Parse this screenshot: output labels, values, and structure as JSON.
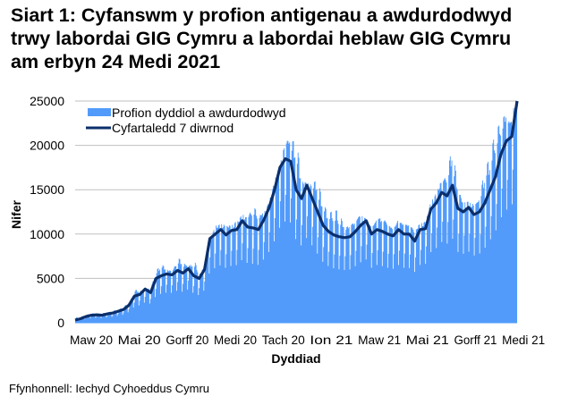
{
  "title": {
    "line1": "Siart 1: Cyfanswm y profion antigenau a awdurdodwyd",
    "line2": "trwy labordai GIG Cymru a labordai heblaw GIG Cymru",
    "line3": "am erbyn 24 Medi 2021"
  },
  "source": "Ffynhonnell: Iechyd Cyhoeddus Cymru",
  "colors": {
    "bars": "#529BFB",
    "line": "#0B2F6B",
    "grid": "#BFBFBF"
  },
  "chart_data": {
    "type": "bar",
    "title": "Siart 1: Cyfanswm y profion antigenau a awdurdodwyd trwy labordai GIG Cymru a labordai heblaw GIG Cymru am erbyn 24 Medi 2021",
    "xlabel": "Dyddiad",
    "ylabel": "Nifer",
    "ylim": [
      0,
      25000
    ],
    "yticks": [
      0,
      5000,
      10000,
      15000,
      20000,
      25000
    ],
    "xticks": [
      "Maw 20",
      "Mai 20",
      "Gorff 20",
      "Medi 20",
      "Tach 20",
      "Ion 21",
      "Maw 21",
      "Mai 21",
      "Gorff 21",
      "Medi 21"
    ],
    "grid": true,
    "legend_position": "top-left inside",
    "legend": [
      "Profion dyddiol a awdurdodwyd",
      "Cyfartaledd 7 diwrnod"
    ],
    "x_start": "2020-03-01",
    "x_end": "2021-09-24",
    "weekly_labels": [
      "2020-03-01",
      "2020-03-08",
      "2020-03-15",
      "2020-03-22",
      "2020-03-29",
      "2020-04-05",
      "2020-04-12",
      "2020-04-19",
      "2020-04-26",
      "2020-05-03",
      "2020-05-10",
      "2020-05-17",
      "2020-05-24",
      "2020-05-31",
      "2020-06-07",
      "2020-06-14",
      "2020-06-21",
      "2020-06-28",
      "2020-07-05",
      "2020-07-12",
      "2020-07-19",
      "2020-07-26",
      "2020-08-02",
      "2020-08-09",
      "2020-08-16",
      "2020-08-23",
      "2020-08-30",
      "2020-09-06",
      "2020-09-13",
      "2020-09-20",
      "2020-09-27",
      "2020-10-04",
      "2020-10-11",
      "2020-10-18",
      "2020-10-25",
      "2020-11-01",
      "2020-11-08",
      "2020-11-15",
      "2020-11-22",
      "2020-11-29",
      "2020-12-06",
      "2020-12-13",
      "2020-12-20",
      "2020-12-27",
      "2021-01-03",
      "2021-01-10",
      "2021-01-17",
      "2021-01-24",
      "2021-01-31",
      "2021-02-07",
      "2021-02-14",
      "2021-02-21",
      "2021-02-28",
      "2021-03-07",
      "2021-03-14",
      "2021-03-21",
      "2021-03-28",
      "2021-04-04",
      "2021-04-11",
      "2021-04-18",
      "2021-04-25",
      "2021-05-02",
      "2021-05-09",
      "2021-05-16",
      "2021-05-23",
      "2021-05-30",
      "2021-06-06",
      "2021-06-13",
      "2021-06-20",
      "2021-06-27",
      "2021-07-04",
      "2021-07-11",
      "2021-07-18",
      "2021-07-25",
      "2021-08-01",
      "2021-08-08",
      "2021-08-15",
      "2021-08-22",
      "2021-08-29",
      "2021-09-05",
      "2021-09-12",
      "2021-09-19",
      "2021-09-24"
    ],
    "series": [
      {
        "name": "Profion dyddiol a awdurdodwyd",
        "type": "bar",
        "peak_values": [
          600,
          700,
          900,
          1100,
          1000,
          1100,
          1200,
          1400,
          1500,
          1900,
          2300,
          3800,
          3700,
          3500,
          4000,
          6000,
          6800,
          6000,
          5800,
          7500,
          7000,
          6200,
          7400,
          5500,
          6200,
          8000,
          11000,
          10800,
          11200,
          10600,
          11500,
          11800,
          12000,
          13500,
          12500,
          12200,
          13000,
          15700,
          16000,
          21000,
          20800,
          21000,
          17000,
          14200,
          16000,
          16500,
          13800,
          12500,
          13000,
          12800,
          10800,
          11300,
          11500,
          12600,
          10500,
          10600,
          12000,
          12000,
          11500,
          10500,
          11800,
          11200,
          11300,
          10600,
          11000,
          11200,
          13000,
          14500,
          16000,
          17000,
          20300,
          16000,
          13500,
          13000,
          13500,
          14000,
          17500,
          19000,
          22000,
          23000,
          24100,
          22500,
          25000
        ]
      },
      {
        "name": "Cyfartaledd 7 diwrnod",
        "type": "line",
        "values": [
          300,
          450,
          700,
          850,
          900,
          850,
          1000,
          1100,
          1300,
          1500,
          2000,
          3000,
          3200,
          3800,
          3400,
          5000,
          5300,
          5500,
          5400,
          5900,
          5600,
          6100,
          5300,
          5000,
          6000,
          9500,
          10000,
          10500,
          9900,
          10400,
          10500,
          11500,
          10800,
          10700,
          10500,
          11600,
          13000,
          15000,
          17500,
          18500,
          18200,
          15000,
          14000,
          15500,
          14000,
          12500,
          11000,
          10300,
          9900,
          9700,
          9600,
          9700,
          10300,
          11000,
          11500,
          10000,
          10500,
          10300,
          10000,
          9800,
          10500,
          10000,
          10000,
          9200,
          10500,
          10600,
          12800,
          13500,
          14700,
          14300,
          15500,
          12900,
          12500,
          13000,
          12200,
          12500,
          13500,
          15000,
          16500,
          19000,
          20500,
          21000,
          25000
        ]
      }
    ]
  }
}
